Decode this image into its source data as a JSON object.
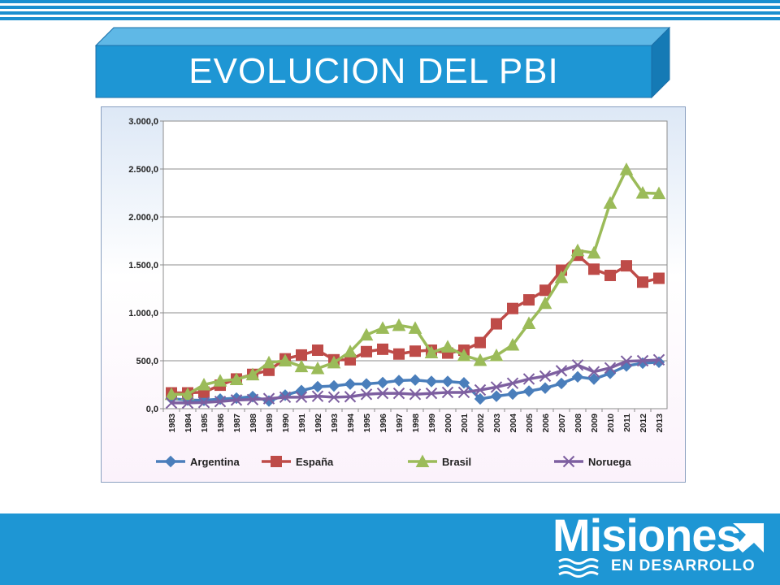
{
  "slide": {
    "title": "EVOLUCION DEL PBI",
    "logo_main": "Misiones",
    "logo_sub": "EN DESARROLLO",
    "colors": {
      "header_blue": "#1b8fd0",
      "title_box": "#1e96d4",
      "footer_blue": "#1e96d4"
    }
  },
  "chart_data": {
    "type": "line",
    "title": "",
    "xlabel": "",
    "ylabel": "",
    "ylim": [
      0,
      3000
    ],
    "yticks": [
      0,
      500,
      1000,
      1500,
      2000,
      2500,
      3000
    ],
    "ytick_labels": [
      "0,0",
      "500,0",
      "1.000,0",
      "1.500,0",
      "2.000,0",
      "2.500,0",
      "3.000,0"
    ],
    "grid": true,
    "legend_position": "bottom",
    "categories": [
      "1983",
      "1984",
      "1985",
      "1986",
      "1987",
      "1988",
      "1989",
      "1990",
      "1991",
      "1992",
      "1993",
      "1994",
      "1995",
      "1996",
      "1997",
      "1998",
      "1999",
      "2000",
      "2001",
      "2002",
      "2003",
      "2004",
      "2005",
      "2006",
      "2007",
      "2008",
      "2009",
      "2010",
      "2011",
      "2012",
      "2013"
    ],
    "series": [
      {
        "name": "Argentina",
        "color": "#4a7ebb",
        "marker": "diamond",
        "values": [
          105,
          90,
          88,
          100,
          110,
          126,
          80,
          141,
          189,
          229,
          237,
          257,
          258,
          272,
          293,
          299,
          284,
          284,
          269,
          102,
          130,
          153,
          183,
          215,
          263,
          332,
          309,
          369,
          446,
          475,
          485
        ]
      },
      {
        "name": "España",
        "color": "#be4b48",
        "marker": "square",
        "values": [
          165,
          165,
          172,
          245,
          310,
          358,
          400,
          520,
          560,
          610,
          510,
          510,
          595,
          620,
          570,
          600,
          610,
          580,
          610,
          690,
          885,
          1045,
          1135,
          1235,
          1445,
          1600,
          1455,
          1390,
          1490,
          1320,
          1360
        ]
      },
      {
        "name": "Brasil",
        "color": "#9bbb59",
        "marker": "triangle",
        "values": [
          150,
          150,
          250,
          290,
          305,
          355,
          480,
          500,
          440,
          420,
          480,
          595,
          770,
          840,
          870,
          840,
          585,
          645,
          555,
          505,
          555,
          665,
          890,
          1100,
          1370,
          1650,
          1625,
          2145,
          2495,
          2250,
          2245
        ]
      },
      {
        "name": "Noruega",
        "color": "#7d5fa0",
        "marker": "x",
        "values": [
          60,
          60,
          65,
          75,
          90,
          95,
          105,
          120,
          120,
          130,
          120,
          125,
          150,
          160,
          160,
          150,
          160,
          170,
          170,
          195,
          225,
          265,
          310,
          340,
          395,
          455,
          385,
          425,
          495,
          500,
          510
        ]
      }
    ]
  }
}
